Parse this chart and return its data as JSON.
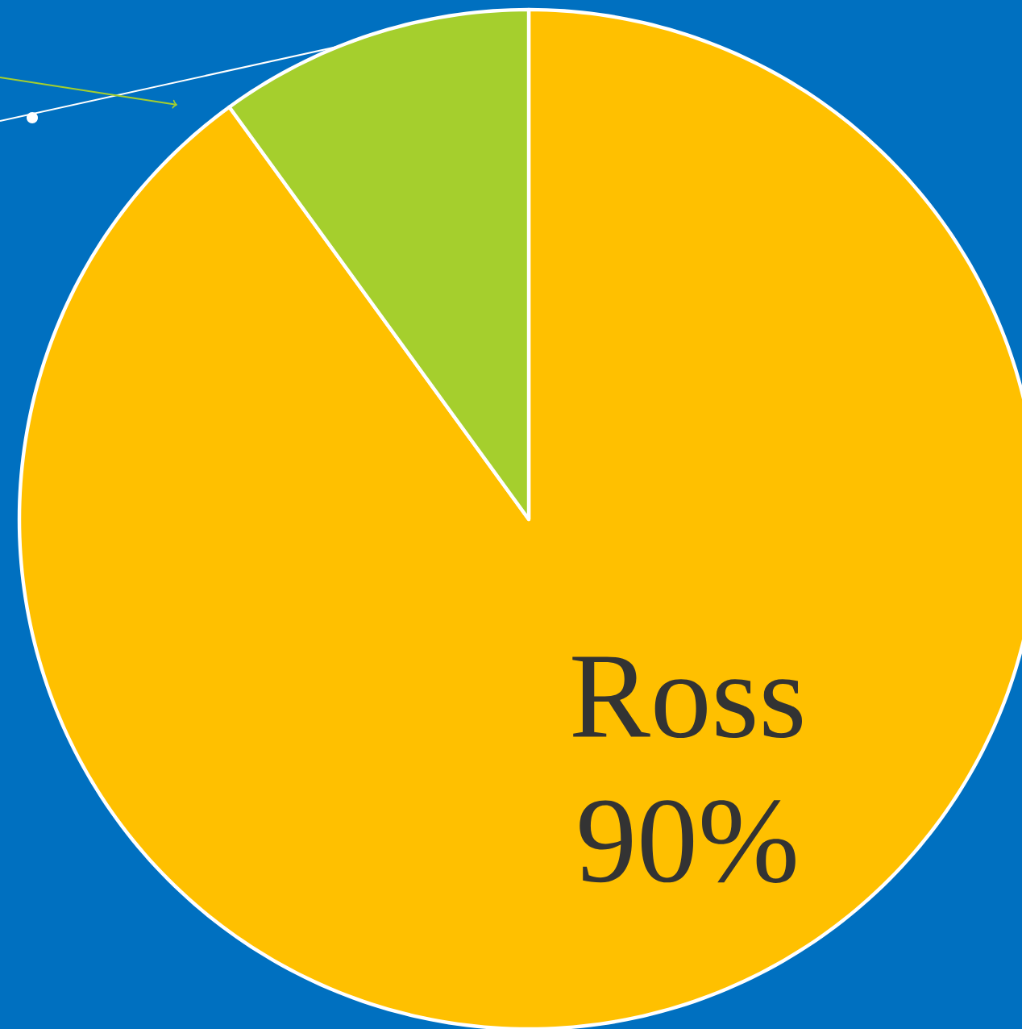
{
  "chart_data": {
    "type": "pie",
    "categories": [
      "Ross",
      null
    ],
    "values": [
      90,
      10
    ],
    "colors": [
      "#ffc000",
      "#a5cf2d"
    ],
    "value_labels": [
      "90%",
      null
    ]
  }
}
